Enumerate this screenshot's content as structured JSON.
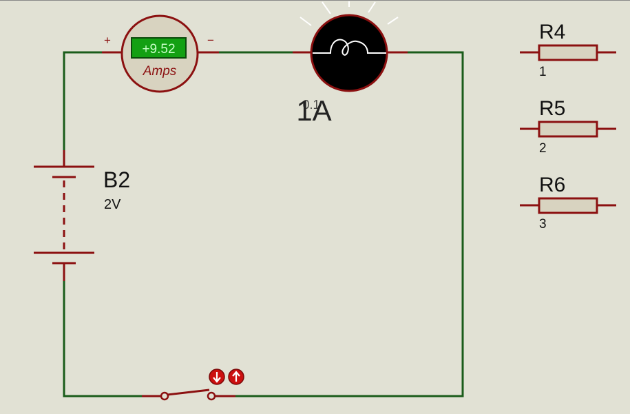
{
  "schematic": {
    "ammeter": {
      "reading": "+9.52",
      "unit_label": "Amps",
      "plus_sign": "+",
      "minus_sign": "−"
    },
    "lamp": {
      "label_a": "1A",
      "label_b": "0.1"
    },
    "battery": {
      "ref": "B2",
      "value": "2V"
    },
    "resistors": [
      {
        "ref": "R4",
        "value": "1"
      },
      {
        "ref": "R5",
        "value": "2"
      },
      {
        "ref": "R6",
        "value": "3"
      }
    ],
    "switch": {
      "close_icon": "arrow-down-icon",
      "open_icon": "arrow-up-icon"
    }
  },
  "colors": {
    "background": "#e1e1d4",
    "wire": "#1a5c1a",
    "component": "#8b1010",
    "display_bg": "#13a013",
    "display_text": "#c8ffc8",
    "lamp_fill": "#000000"
  }
}
